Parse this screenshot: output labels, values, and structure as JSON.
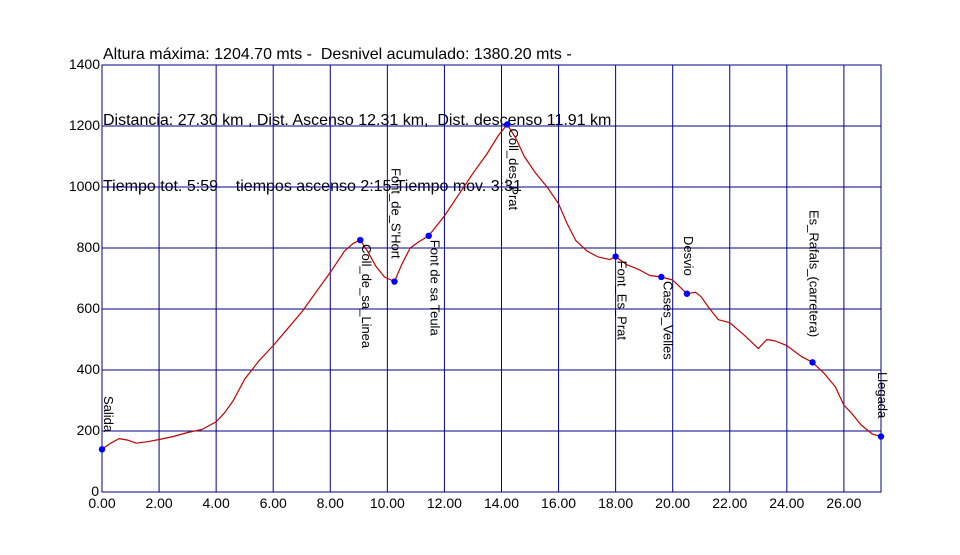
{
  "header": {
    "line1": "Altura máxima: 1204.70 mts -  Desnivel acumulado: 1380.20 mts -",
    "line2": "Distancia: 27.30 km , Dist. Ascenso 12.31 km,  Dist. descenso 11.91 km",
    "line3": "Tiempo tot. 5:59    tiempos ascenso 2:15 Tiempo mov. 3:31"
  },
  "chart_data": {
    "type": "line",
    "title": "",
    "xlabel": "",
    "ylabel": "",
    "xlim": [
      0,
      27.3
    ],
    "ylim": [
      0,
      1400
    ],
    "grid": true,
    "x_ticks": [
      0,
      2,
      4,
      6,
      8,
      10,
      12,
      14,
      16,
      18,
      20,
      22,
      24,
      26
    ],
    "x_tick_labels": [
      "0.00",
      "2.00",
      "4.00",
      "6.00",
      "8.00",
      "10.00",
      "12.00",
      "14.00",
      "16.00",
      "18.00",
      "20.00",
      "22.00",
      "24.00",
      "26.00"
    ],
    "y_ticks": [
      0,
      200,
      400,
      600,
      800,
      1000,
      1200,
      1400
    ],
    "y_tick_labels": [
      "0",
      "200",
      "400",
      "600",
      "800",
      "1000",
      "1200",
      "1400"
    ],
    "colors": {
      "profile": "#c00000",
      "grid": "#00008b",
      "waypoint": "#0000ff"
    },
    "series": [
      {
        "x": [
          0,
          0.3,
          0.6,
          0.9,
          1.2,
          1.6,
          2.0,
          2.5,
          3.0,
          3.5,
          4.0,
          4.3,
          4.6,
          5.0,
          5.5,
          6.0,
          6.5,
          7.0,
          7.5,
          8.0,
          8.5,
          8.8,
          9.05,
          9.3,
          9.6,
          9.9,
          10.25,
          10.5,
          10.8,
          11.1,
          11.45,
          12.0,
          12.5,
          13.0,
          13.5,
          13.9,
          14.2,
          14.5,
          14.8,
          15.2,
          15.6,
          16.0,
          16.3,
          16.6,
          17.0,
          17.4,
          17.8,
          18.0,
          18.4,
          18.8,
          19.2,
          19.6,
          20.0,
          20.5,
          20.8,
          21.0,
          21.3,
          21.6,
          22.0,
          22.5,
          23.0,
          23.3,
          23.6,
          24.0,
          24.5,
          24.9,
          25.3,
          25.7,
          26.0,
          26.3,
          26.6,
          27.0,
          27.3
        ],
        "y": [
          140,
          160,
          175,
          170,
          160,
          165,
          172,
          182,
          195,
          205,
          230,
          260,
          300,
          370,
          430,
          480,
          535,
          590,
          655,
          720,
          790,
          815,
          826,
          790,
          740,
          705,
          690,
          745,
          800,
          820,
          840,
          905,
          975,
          1045,
          1110,
          1170,
          1205,
          1160,
          1100,
          1045,
          1000,
          945,
          880,
          825,
          790,
          770,
          762,
          772,
          745,
          730,
          710,
          705,
          695,
          650,
          655,
          640,
          600,
          565,
          555,
          515,
          470,
          500,
          495,
          480,
          445,
          425,
          390,
          345,
          285,
          255,
          220,
          190,
          182
        ]
      }
    ],
    "waypoints": [
      {
        "name": "Salida",
        "x": 0.0,
        "y": 140
      },
      {
        "name": "Coll_de_sa_Linea",
        "x": 9.05,
        "y": 826
      },
      {
        "name": "Font_de_S'Hort",
        "x": 10.25,
        "y": 690
      },
      {
        "name": "Font de sa Teula",
        "x": 11.45,
        "y": 840
      },
      {
        "name": "Coll_des_Prat",
        "x": 14.2,
        "y": 1205
      },
      {
        "name": "Font_Es_Prat",
        "x": 18.0,
        "y": 772
      },
      {
        "name": "Cases_Velles",
        "x": 19.6,
        "y": 705
      },
      {
        "name": "Desvio",
        "x": 20.5,
        "y": 650
      },
      {
        "name": "Es_Rafals_(carretera)",
        "x": 24.9,
        "y": 425
      },
      {
        "name": "Llegada",
        "x": 27.3,
        "y": 182
      }
    ]
  }
}
